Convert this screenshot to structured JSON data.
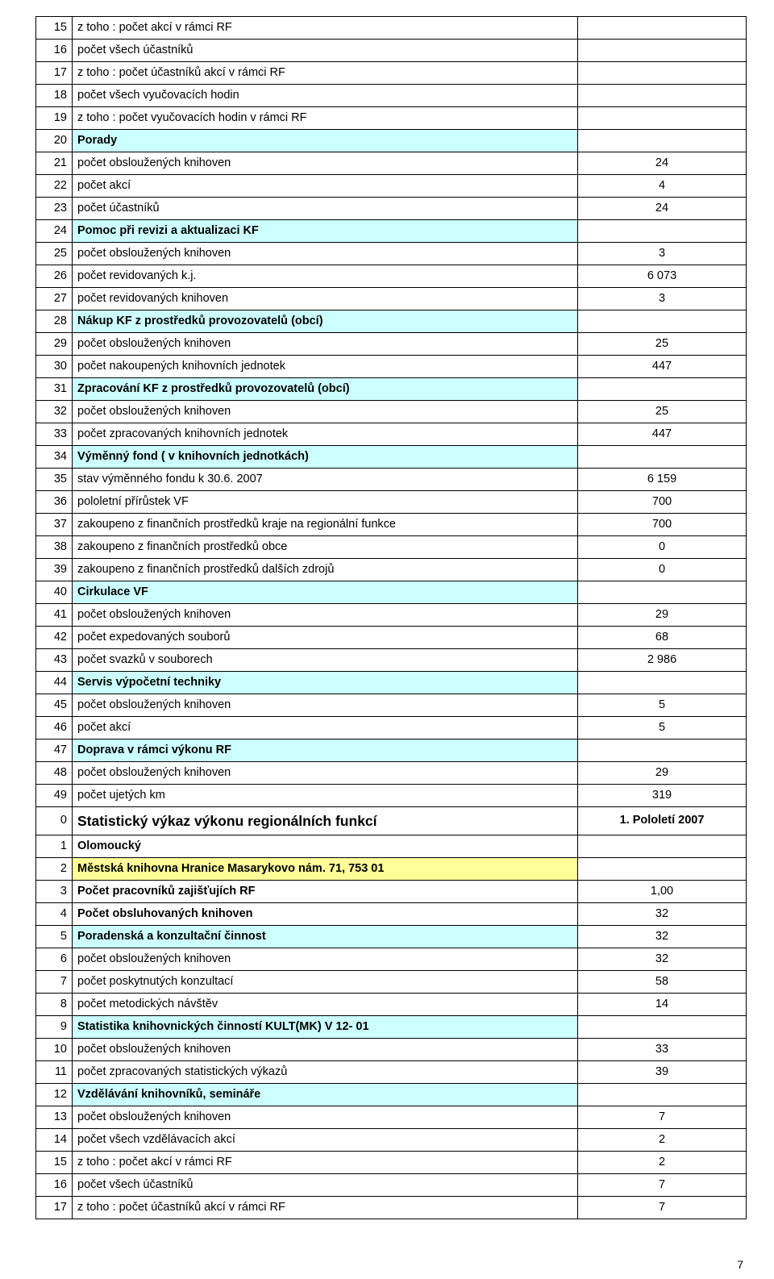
{
  "colors": {
    "section_bg": "#ccffff",
    "highlight_bg": "#ffff99",
    "border": "#000000",
    "text": "#000000",
    "page_bg": "#ffffff"
  },
  "rows": [
    {
      "n": "15",
      "label": "z toho : počet akcí v rámci RF",
      "val": "",
      "indent": 2
    },
    {
      "n": "16",
      "label": "počet všech účastníků",
      "val": "",
      "indent": 1
    },
    {
      "n": "17",
      "label": "z toho : počet účastníků akcí v rámci RF",
      "val": "",
      "indent": 2
    },
    {
      "n": "18",
      "label": "počet všech vyučovacích hodin",
      "val": "",
      "indent": 1
    },
    {
      "n": "19",
      "label": "z toho : počet vyučovacích hodin v rámci RF",
      "val": "",
      "indent": 2
    },
    {
      "n": "20",
      "label": "Porady",
      "val": "",
      "section": true
    },
    {
      "n": "21",
      "label": "počet obsloužených knihoven",
      "val": "24",
      "indent": 1
    },
    {
      "n": "22",
      "label": "počet akcí",
      "val": "4",
      "indent": 1
    },
    {
      "n": "23",
      "label": "počet účastníků",
      "val": "24",
      "indent": 1
    },
    {
      "n": "24",
      "label": "Pomoc při revizi a aktualizaci KF",
      "val": "",
      "section": true
    },
    {
      "n": "25",
      "label": "počet obsloužených knihoven",
      "val": "3",
      "indent": 1
    },
    {
      "n": "26",
      "label": "počet revidovaných k.j.",
      "val": "6 073",
      "indent": 1
    },
    {
      "n": "27",
      "label": "počet revidovaných knihoven",
      "val": "3",
      "indent": 1
    },
    {
      "n": "28",
      "label": "Nákup KF z prostředků provozovatelů (obcí)",
      "val": "",
      "section": true
    },
    {
      "n": "29",
      "label": "počet obsloužených knihoven",
      "val": "25",
      "indent": 1
    },
    {
      "n": "30",
      "label": "počet nakoupených knihovních jednotek",
      "val": "447",
      "indent": 1
    },
    {
      "n": "31",
      "label": "Zpracování KF z prostředků provozovatelů (obcí)",
      "val": "",
      "section": true
    },
    {
      "n": "32",
      "label": "počet obsloužených knihoven",
      "val": "25",
      "indent": 1
    },
    {
      "n": "33",
      "label": "počet zpracovaných knihovních jednotek",
      "val": "447",
      "indent": 1
    },
    {
      "n": "34",
      "label": "Výměnný fond ( v knihovních jednotkách)",
      "val": "",
      "section": true
    },
    {
      "n": "35",
      "label": "stav výměnného fondu k 30.6. 2007",
      "val": "6 159",
      "indent": 1
    },
    {
      "n": "36",
      "label": "pololetní přírůstek VF",
      "val": "700",
      "indent": 1
    },
    {
      "n": "37",
      "label": "zakoupeno z finančních prostředků kraje na regionální funkce",
      "val": "700",
      "indent": 1
    },
    {
      "n": "38",
      "label": "zakoupeno z finančních prostředků obce",
      "val": "0",
      "indent": 1
    },
    {
      "n": "39",
      "label": "zakoupeno z finančních prostředků dalších zdrojů",
      "val": "0",
      "indent": 1
    },
    {
      "n": "40",
      "label": "Cirkulace VF",
      "val": "",
      "section": true
    },
    {
      "n": "41",
      "label": "počet obsloužených knihoven",
      "val": "29",
      "indent": 1
    },
    {
      "n": "42",
      "label": "počet expedovaných souborů",
      "val": "68",
      "indent": 1
    },
    {
      "n": "43",
      "label": "počet svazků v souborech",
      "val": "2 986",
      "indent": 1
    },
    {
      "n": "44",
      "label": "Servis výpočetní techniky",
      "val": "",
      "section": true
    },
    {
      "n": "45",
      "label": "počet obsloužených knihoven",
      "val": "5",
      "indent": 1
    },
    {
      "n": "46",
      "label": "počet akcí",
      "val": "5",
      "indent": 1
    },
    {
      "n": "47",
      "label": "Doprava v rámci výkonu RF",
      "val": "",
      "section": true
    },
    {
      "n": "48",
      "label": "počet obsloužených knihoven",
      "val": "29",
      "indent": 1
    },
    {
      "n": "49",
      "label": "počet ujetých km",
      "val": "319",
      "indent": 1
    },
    {
      "n": "0",
      "label": "Statistický výkaz výkonu regionálních funkcí",
      "val": "1. Pololetí 2007",
      "title": true
    },
    {
      "n": "1",
      "label": "Olomoucký",
      "val": "",
      "boldplain": true
    },
    {
      "n": "2",
      "label": "Městská knihovna Hranice Masarykovo nám. 71, 753 01",
      "val": "",
      "highlight": true
    },
    {
      "n": "3",
      "label": "Počet pracovníků zajišťujích RF",
      "val": "1,00",
      "boldplain": true
    },
    {
      "n": "4",
      "label": "Počet obsluhovaných knihoven",
      "val": "32",
      "boldplain": true
    },
    {
      "n": "5",
      "label": "Poradenská a konzultační činnost",
      "val": "32",
      "section": true
    },
    {
      "n": "6",
      "label": "počet obsloužených knihoven",
      "val": "32",
      "indent": 1
    },
    {
      "n": "7",
      "label": "počet poskytnutých konzultací",
      "val": "58",
      "indent": 1
    },
    {
      "n": "8",
      "label": "počet metodických návštěv",
      "val": "14",
      "indent": 1
    },
    {
      "n": "9",
      "label": "Statistika knihovnických činností KULT(MK) V 12- 01",
      "val": "",
      "section": true
    },
    {
      "n": "10",
      "label": "počet obsloužených knihoven",
      "val": "33",
      "indent": 1
    },
    {
      "n": "11",
      "label": "počet zpracovaných statistických výkazů",
      "val": "39",
      "indent": 1
    },
    {
      "n": "12",
      "label": "Vzdělávání knihovníků, semináře",
      "val": "",
      "section": true
    },
    {
      "n": "13",
      "label": "počet obsloužených knihoven",
      "val": "7",
      "indent": 1
    },
    {
      "n": "14",
      "label": "počet všech vzdělávacích akcí",
      "val": "2",
      "indent": 1
    },
    {
      "n": "15",
      "label": "z toho : počet akcí v rámci RF",
      "val": "2",
      "indent": 2
    },
    {
      "n": "16",
      "label": "počet všech účastníků",
      "val": "7",
      "indent": 1
    },
    {
      "n": "17",
      "label": "z toho : počet účastníků akcí v rámci RF",
      "val": "7",
      "indent": 2
    }
  ],
  "page_number": "7"
}
